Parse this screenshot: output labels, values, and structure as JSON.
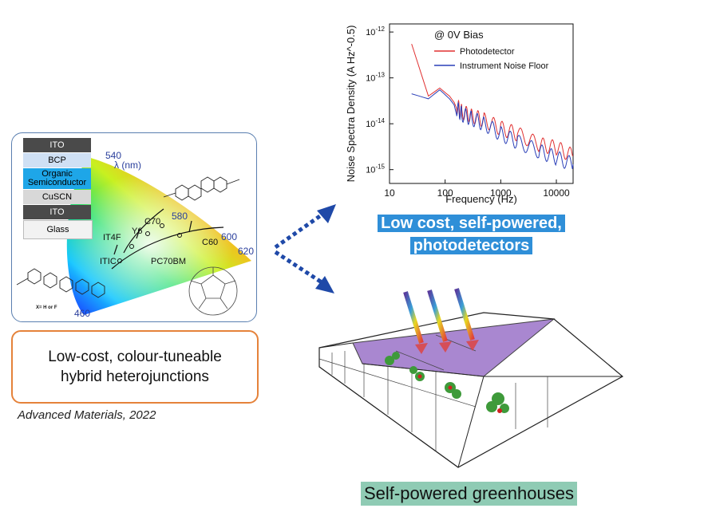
{
  "device_stack": {
    "layers": [
      "ITO",
      "BCP",
      "Organic\nSemiconductor",
      "CuSCN",
      "ITO",
      "Glass"
    ]
  },
  "chromaticity": {
    "wavelength_label": "λ (nm)",
    "ticks": [
      "540",
      "580",
      "600",
      "620",
      "460"
    ],
    "materials": [
      "IT4F",
      "Y6",
      "C70",
      "ITIC",
      "C60",
      "PC70BM"
    ],
    "substituent_note": "X= H or F"
  },
  "left_caption": {
    "line1": "Low-cost, colour-tuneable",
    "line2": "hybrid heterojunctions"
  },
  "citation": "Advanced Materials, 2022",
  "noise_plot_labels": {
    "bias_label": "@ 0V Bias",
    "ylabel": "Noise Spectra Density (A Hz^-0.5)",
    "xlabel": "Frequency (Hz)"
  },
  "chart_data": {
    "type": "line",
    "xscale": "log",
    "yscale": "log",
    "xlim": [
      10,
      20000
    ],
    "ylim": [
      5e-16,
      1.5e-12
    ],
    "xticks": [
      "10",
      "100",
      "1000",
      "10000"
    ],
    "yticks": [
      "10^-12",
      "10^-13",
      "10^-14",
      "10^-15"
    ],
    "legend_position": "top-right",
    "series": [
      {
        "name": "Photodetector",
        "color": "#e03030",
        "x": [
          25,
          50,
          80,
          120,
          160,
          200,
          300,
          500,
          1000,
          2000,
          5000,
          10000,
          20000
        ],
        "y": [
          5.5e-13,
          4e-14,
          6e-14,
          4e-14,
          2.5e-14,
          1.8e-14,
          1.5e-14,
          1.2e-14,
          8e-15,
          6e-15,
          3.5e-15,
          3e-15,
          2e-15
        ]
      },
      {
        "name": "Instrument Noise Floor",
        "color": "#2a3fb8",
        "x": [
          25,
          50,
          80,
          120,
          160,
          200,
          300,
          500,
          1000,
          2000,
          5000,
          10000,
          20000
        ],
        "y": [
          4.5e-14,
          3.5e-14,
          5.5e-14,
          3.5e-14,
          2.2e-14,
          1.6e-14,
          1.3e-14,
          1e-14,
          6e-15,
          4e-15,
          2.5e-15,
          1.8e-15,
          1.3e-15
        ]
      }
    ]
  },
  "pd_caption": {
    "line1": "Low cost, self-powered,",
    "line2": "photodetectors"
  },
  "greenhouse_caption": "Self-powered greenhouses",
  "colors": {
    "panel_border": "#5a7fb0",
    "caption_border": "#e5823a",
    "arrow": "#1f49a8",
    "roof_purple": "#9b73c8",
    "highlight_blue": "#2f8fd8",
    "highlight_green": "#8fcbb4"
  }
}
